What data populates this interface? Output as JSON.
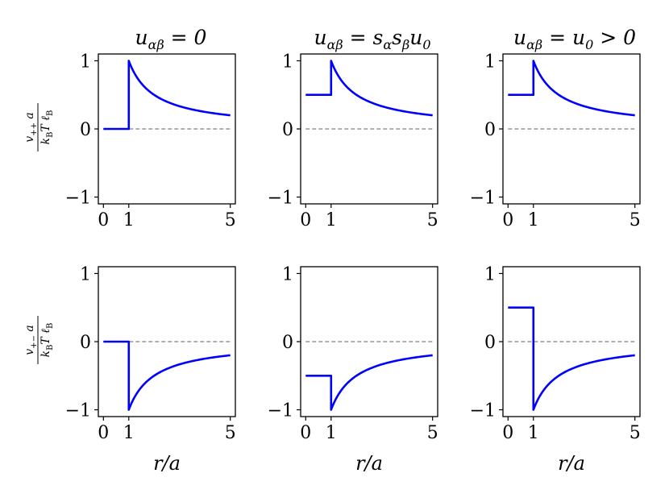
{
  "figure": {
    "row_ylabels": [
      {
        "numerator": "v++  a",
        "denominator": "kBT ℓB"
      },
      {
        "numerator": "v+−  a",
        "denominator": "kBT ℓB"
      }
    ],
    "col_titles": [
      "uαβ = 0",
      "uαβ = sα sβ u0",
      "uαβ = u0 > 0"
    ],
    "xlabel": "r/a",
    "xticks": [
      "0",
      "1",
      "5"
    ],
    "yticks": [
      "−1",
      "0",
      "1"
    ],
    "line_color": "#0000ff",
    "zero_line_color": "#808080"
  },
  "chart_data": [
    {
      "type": "line",
      "panel": "row1-col1",
      "title": "uαβ = 0",
      "ylabel": "v++ a / kBT ℓB",
      "xlim": [
        -0.2,
        5.2
      ],
      "ylim": [
        -1.1,
        1.1
      ],
      "series": [
        {
          "inner": 0.0,
          "tail": "1/r",
          "sign": 1
        }
      ]
    },
    {
      "type": "line",
      "panel": "row1-col2",
      "title": "uαβ = sα sβ u0",
      "xlim": [
        -0.2,
        5.2
      ],
      "ylim": [
        -1.1,
        1.1
      ],
      "series": [
        {
          "inner": 0.5,
          "tail": "1/r",
          "sign": 1
        }
      ]
    },
    {
      "type": "line",
      "panel": "row1-col3",
      "title": "uαβ = u0 > 0",
      "xlim": [
        -0.2,
        5.2
      ],
      "ylim": [
        -1.1,
        1.1
      ],
      "series": [
        {
          "inner": 0.5,
          "tail": "1/r",
          "sign": 1
        }
      ]
    },
    {
      "type": "line",
      "panel": "row2-col1",
      "ylabel": "v+− a / kBT ℓB",
      "xlabel": "r/a",
      "xlim": [
        -0.2,
        5.2
      ],
      "ylim": [
        -1.1,
        1.1
      ],
      "series": [
        {
          "inner": 0.0,
          "tail": "-1/r",
          "sign": -1
        }
      ]
    },
    {
      "type": "line",
      "panel": "row2-col2",
      "xlabel": "r/a",
      "xlim": [
        -0.2,
        5.2
      ],
      "ylim": [
        -1.1,
        1.1
      ],
      "series": [
        {
          "inner": -0.5,
          "tail": "-1/r",
          "sign": -1
        }
      ]
    },
    {
      "type": "line",
      "panel": "row2-col3",
      "xlabel": "r/a",
      "xlim": [
        -0.2,
        5.2
      ],
      "ylim": [
        -1.1,
        1.1
      ],
      "series": [
        {
          "inner": 0.5,
          "tail": "-1/r",
          "sign": -1
        }
      ]
    }
  ]
}
